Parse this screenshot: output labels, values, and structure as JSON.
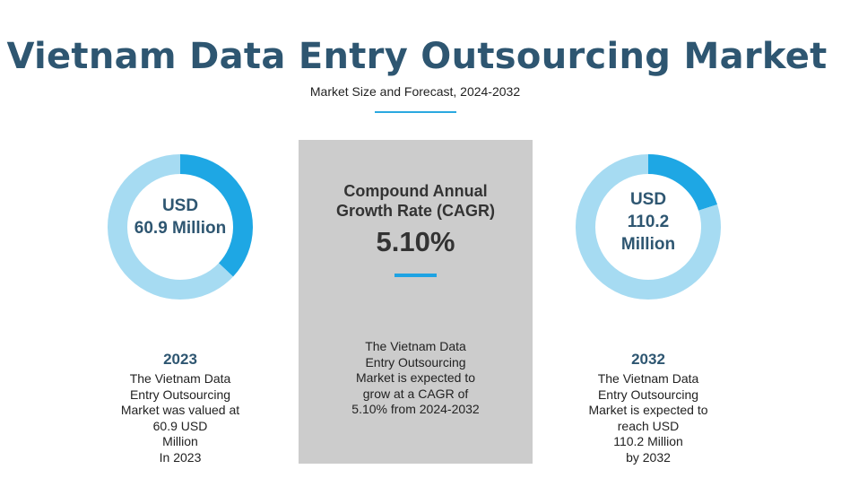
{
  "header": {
    "title": "Vietnam Data Entry Outsourcing Market",
    "subtitle": "Market Size and Forecast, 2024-2032"
  },
  "chart_data": [
    {
      "type": "pie",
      "title": "USD 60.9 Million",
      "center_label_lines": [
        "USD",
        "60.9 Million"
      ],
      "value": 60.9,
      "unit": "USD Million",
      "year": "2023",
      "segments": [
        {
          "name": "highlight",
          "fraction": 0.37,
          "color": "#1ea7e4"
        },
        {
          "name": "remainder",
          "fraction": 0.63,
          "color": "#a6dbf2"
        }
      ]
    },
    {
      "type": "pie",
      "title": "USD 110.2 Million",
      "center_label_lines": [
        "USD",
        "110.2",
        "Million"
      ],
      "value": 110.2,
      "unit": "USD Million",
      "year": "2032",
      "segments": [
        {
          "name": "highlight",
          "fraction": 0.2,
          "color": "#1ea7e4"
        },
        {
          "name": "remainder",
          "fraction": 0.8,
          "color": "#a6dbf2"
        }
      ]
    }
  ],
  "left": {
    "year": "2023",
    "description_lines": [
      "The Vietnam Data",
      "Entry Outsourcing",
      "Market was valued at",
      "60.9 USD",
      "Million",
      "In 2023"
    ]
  },
  "center": {
    "heading_lines": [
      "Compound Annual",
      "Growth Rate (CAGR)"
    ],
    "cagr_value": "5.10%",
    "description_lines": [
      "The Vietnam Data",
      "Entry Outsourcing",
      "Market is expected to",
      "grow at a CAGR of",
      "5.10% from 2024-2032"
    ]
  },
  "right": {
    "year": "2032",
    "description_lines": [
      "The Vietnam Data",
      "Entry Outsourcing",
      "Market is expected to",
      "reach USD",
      "110.2 Million",
      "by 2032"
    ]
  },
  "colors": {
    "title": "#2e5671",
    "accent": "#1ea7e4",
    "ring_light": "#a6dbf2",
    "panel": "#cccccc"
  }
}
